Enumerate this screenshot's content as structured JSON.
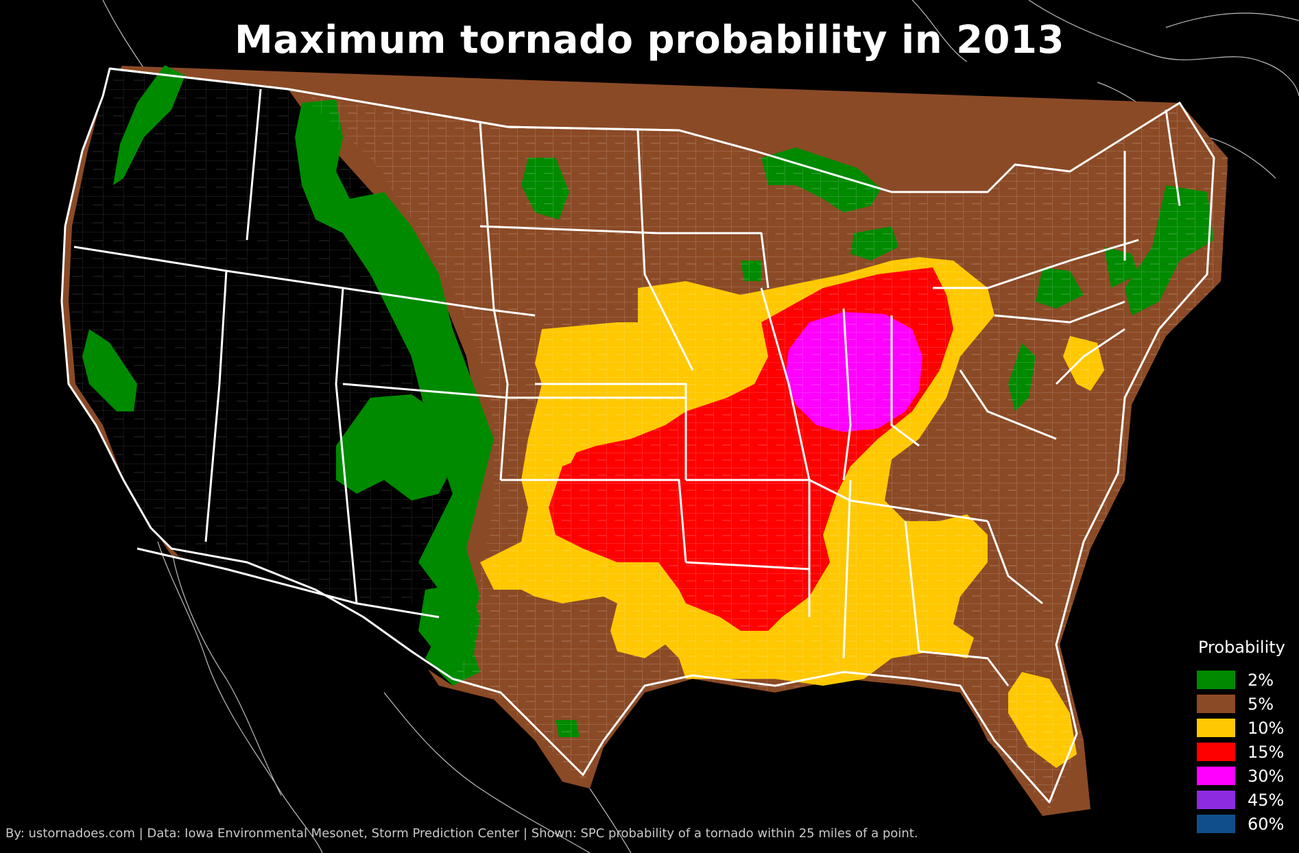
{
  "title": "Maximum tornado probability in 2013",
  "legend": {
    "title": "Probability",
    "items": [
      {
        "label": "2%",
        "color": "#008a00"
      },
      {
        "label": "5%",
        "color": "#8b4a26"
      },
      {
        "label": "10%",
        "color": "#ffc800"
      },
      {
        "label": "15%",
        "color": "#ff0000"
      },
      {
        "label": "30%",
        "color": "#ff00ff"
      },
      {
        "label": "45%",
        "color": "#8c2be0"
      },
      {
        "label": "60%",
        "color": "#104e8b"
      }
    ]
  },
  "footer": "By: ustornadoes.com | Data: Iowa Environmental Mesonet, Storm Prediction Center | Shown: SPC probability of a tornado within 25 miles of a point.",
  "colors": {
    "background": "#000000",
    "state_border": "#ffffff",
    "county_border": "#b0b0b0",
    "halo": "#8b4a26"
  }
}
